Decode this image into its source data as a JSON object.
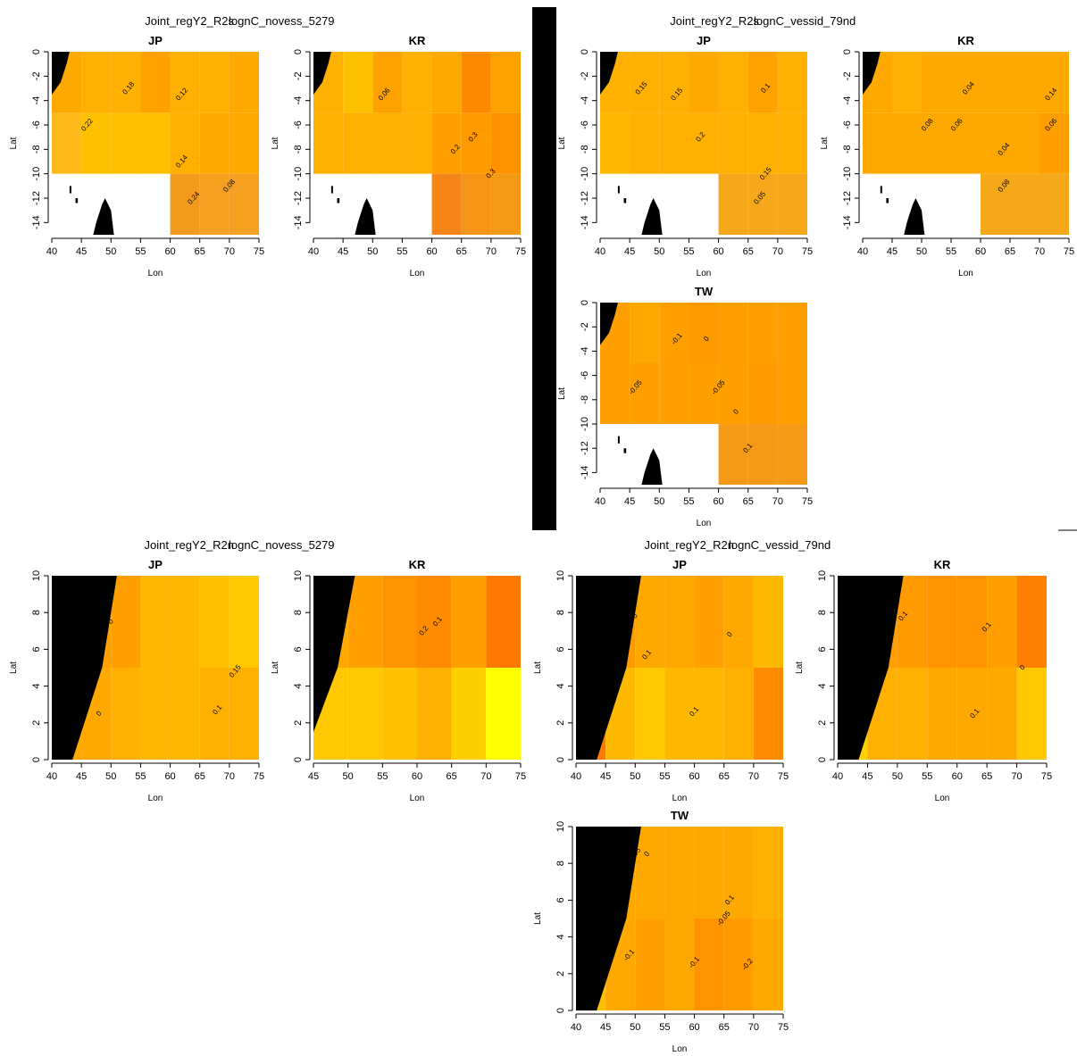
{
  "chart_data": [
    {
      "type": "heatmap",
      "suptitle": [
        "Joint_regY2_R2s",
        "lognC_novess_5279"
      ],
      "title": "JP",
      "xlabel": "Lon",
      "ylabel": "Lat",
      "xlim": [
        40,
        75
      ],
      "ylim": [
        -15,
        0
      ],
      "xticks": [
        40,
        45,
        50,
        55,
        60,
        65,
        70,
        75
      ],
      "yticks": [
        0,
        -2,
        -4,
        -6,
        -8,
        -10,
        -12,
        -14
      ],
      "x_bins": [
        40,
        45,
        50,
        55,
        60,
        65,
        70,
        75
      ],
      "y_bins": [
        -15,
        -10,
        -5,
        0
      ],
      "colors": [
        [
          null,
          null,
          null,
          null,
          "#F29A1C",
          "#F5A020",
          "#F5A020"
        ],
        [
          "#FFB91A",
          "#FFC000",
          "#FFC000",
          "#FFC000",
          "#FFB000",
          "#FFA800",
          "#FFA800"
        ],
        [
          "#FFA800",
          "#FFB000",
          "#FFB000",
          "#FFA200",
          "#FFB000",
          "#FFB000",
          "#FFA800"
        ]
      ],
      "annotations": [
        {
          "text": "0.18",
          "lon": 53,
          "lat": -3
        },
        {
          "text": "0.22",
          "lon": 46,
          "lat": -6
        },
        {
          "text": "0.12",
          "lon": 62,
          "lat": -3.5
        },
        {
          "text": "0.14",
          "lon": 62,
          "lat": -9
        },
        {
          "text": "0.08",
          "lon": 70,
          "lat": -11
        },
        {
          "text": "0.24",
          "lon": 64,
          "lat": -12
        }
      ]
    },
    {
      "type": "heatmap",
      "title": "KR",
      "xlabel": "Lon",
      "ylabel": "Lat",
      "xlim": [
        40,
        75
      ],
      "ylim": [
        -15,
        0
      ],
      "xticks": [
        40,
        45,
        50,
        55,
        60,
        65,
        70,
        75
      ],
      "yticks": [
        0,
        -2,
        -4,
        -6,
        -8,
        -10,
        -12,
        -14
      ],
      "x_bins": [
        40,
        45,
        50,
        55,
        60,
        65,
        70,
        75
      ],
      "y_bins": [
        -15,
        -10,
        -5,
        0
      ],
      "colors": [
        [
          null,
          null,
          null,
          null,
          "#F58516",
          "#F59416",
          "#F59A16"
        ],
        [
          "#FFB000",
          "#FFB000",
          "#FFB000",
          "#FFB000",
          "#FFA000",
          "#FF9A00",
          "#FF9200"
        ],
        [
          "#FFB000",
          "#FFC000",
          "#FFA200",
          "#FFB000",
          "#FFA800",
          "#FF8A00",
          "#FFA200"
        ]
      ],
      "annotations": [
        {
          "text": "0.06",
          "lon": 52,
          "lat": -3.5
        },
        {
          "text": "0.2",
          "lon": 64,
          "lat": -8
        },
        {
          "text": "0.3",
          "lon": 67,
          "lat": -7
        },
        {
          "text": "0.3",
          "lon": 70,
          "lat": -10
        }
      ]
    },
    {
      "type": "heatmap",
      "suptitle": [
        "Joint_regY2_R2s",
        "lognC_vessid_79nd"
      ],
      "title": "JP",
      "xlabel": "Lon",
      "ylabel": "Lat",
      "xlim": [
        40,
        75
      ],
      "ylim": [
        -15,
        0
      ],
      "xticks": [
        40,
        45,
        50,
        55,
        60,
        65,
        70,
        75
      ],
      "yticks": [
        0,
        -2,
        -4,
        -6,
        -8,
        -10,
        -12,
        -14
      ],
      "x_bins": [
        40,
        45,
        50,
        55,
        60,
        65,
        70,
        75
      ],
      "y_bins": [
        -15,
        -10,
        -5,
        0
      ],
      "colors": [
        [
          null,
          null,
          null,
          null,
          "#F5A81A",
          "#F5A81A",
          "#F5A81A"
        ],
        [
          "#FFB800",
          "#FFB000",
          "#FFB000",
          "#FFB000",
          "#FFB000",
          "#FFB000",
          "#FFB000"
        ],
        [
          "#FFB000",
          "#FFB000",
          "#FFB000",
          "#FFA800",
          "#FFB000",
          "#FFA200",
          "#FFB000"
        ]
      ],
      "annotations": [
        {
          "text": "0.15",
          "lon": 47,
          "lat": -3
        },
        {
          "text": "0.15",
          "lon": 53,
          "lat": -3.5
        },
        {
          "text": "0.1",
          "lon": 68,
          "lat": -3
        },
        {
          "text": "0.2",
          "lon": 57,
          "lat": -7
        },
        {
          "text": "0.15",
          "lon": 68,
          "lat": -10
        },
        {
          "text": "0.05",
          "lon": 67,
          "lat": -12
        }
      ]
    },
    {
      "type": "heatmap",
      "title": "KR",
      "xlabel": "Lon",
      "ylabel": "Lat",
      "xlim": [
        40,
        75
      ],
      "ylim": [
        -15,
        0
      ],
      "xticks": [
        40,
        45,
        50,
        55,
        60,
        65,
        70,
        75
      ],
      "yticks": [
        0,
        -2,
        -4,
        -6,
        -8,
        -10,
        -12,
        -14
      ],
      "x_bins": [
        40,
        45,
        50,
        55,
        60,
        65,
        70,
        75
      ],
      "y_bins": [
        -15,
        -10,
        -5,
        0
      ],
      "colors": [
        [
          null,
          null,
          null,
          null,
          "#F5A81A",
          "#F5A81A",
          "#F5A81A"
        ],
        [
          "#FFA800",
          "#FFA800",
          "#FFA800",
          "#FFA800",
          "#FFA800",
          "#FFA800",
          "#FFA000"
        ],
        [
          "#FFA800",
          "#FFB000",
          "#FFA800",
          "#FFA800",
          "#FFA800",
          "#FFA800",
          "#FFA800"
        ]
      ],
      "annotations": [
        {
          "text": "0.04",
          "lon": 58,
          "lat": -3
        },
        {
          "text": "0.14",
          "lon": 72,
          "lat": -3.5
        },
        {
          "text": "0.08",
          "lon": 51,
          "lat": -6
        },
        {
          "text": "0.06",
          "lon": 56,
          "lat": -6
        },
        {
          "text": "0.06",
          "lon": 72,
          "lat": -6
        },
        {
          "text": "0.04",
          "lon": 64,
          "lat": -8
        },
        {
          "text": "0.08",
          "lon": 64,
          "lat": -11
        }
      ]
    },
    {
      "type": "heatmap",
      "title": "TW",
      "xlabel": "Lon",
      "ylabel": "Lat",
      "xlim": [
        40,
        75
      ],
      "ylim": [
        -15,
        0
      ],
      "xticks": [
        40,
        45,
        50,
        55,
        60,
        65,
        70,
        75
      ],
      "yticks": [
        0,
        -2,
        -4,
        -6,
        -8,
        -10,
        -12,
        -14
      ],
      "x_bins": [
        40,
        45,
        50,
        55,
        60,
        65,
        70,
        75
      ],
      "y_bins": [
        -15,
        -10,
        -5,
        0
      ],
      "colors": [
        [
          null,
          null,
          null,
          null,
          "#F59A16",
          "#F59A16",
          "#F59A16"
        ],
        [
          "#FFA000",
          "#FFA000",
          "#FFA000",
          "#FFA000",
          "#FFA000",
          "#FF9A00",
          "#FFA000"
        ],
        [
          "#FFA000",
          "#FFA800",
          "#FFA000",
          "#FF9A00",
          "#FFA000",
          "#FFA000",
          "#FFA000"
        ]
      ],
      "annotations": [
        {
          "text": "-0.1",
          "lon": 53,
          "lat": -3
        },
        {
          "text": "0",
          "lon": 58,
          "lat": -3
        },
        {
          "text": "-0.05",
          "lon": 46,
          "lat": -7
        },
        {
          "text": "-0.05",
          "lon": 60,
          "lat": -7
        },
        {
          "text": "0",
          "lon": 63,
          "lat": -9
        },
        {
          "text": "0.1",
          "lon": 65,
          "lat": -12
        }
      ]
    },
    {
      "type": "heatmap",
      "suptitle": [
        "Joint_regY2_R2n",
        "lognC_novess_5279"
      ],
      "title": "JP",
      "xlabel": "Lon",
      "ylabel": "Lat",
      "xlim": [
        40,
        75
      ],
      "ylim": [
        0,
        10
      ],
      "xticks": [
        40,
        45,
        50,
        55,
        60,
        65,
        70,
        75
      ],
      "yticks": [
        0,
        2,
        4,
        6,
        8,
        10
      ],
      "x_bins": [
        40,
        45,
        50,
        55,
        60,
        65,
        70,
        75
      ],
      "y_bins": [
        0,
        5,
        10
      ],
      "colors": [
        [
          "#FFA800",
          "#FFA800",
          "#FFB000",
          "#FFB800",
          "#FFB800",
          "#FFB000",
          "#FFB000"
        ],
        [
          "#FFA000",
          "#FFA000",
          "#FFA000",
          "#FFB800",
          "#FFB800",
          "#FFC000",
          "#FFC800"
        ]
      ],
      "annotations": [
        {
          "text": "0",
          "lon": 50,
          "lat": 7.5
        },
        {
          "text": "0",
          "lon": 48,
          "lat": 2.5
        },
        {
          "text": "0.15",
          "lon": 71,
          "lat": 4.8
        },
        {
          "text": "0.1",
          "lon": 68,
          "lat": 2.7
        }
      ]
    },
    {
      "type": "heatmap",
      "title": "KR",
      "xlabel": "Lon",
      "ylabel": "Lat",
      "xlim": [
        45,
        75
      ],
      "ylim": [
        0,
        10
      ],
      "xticks": [
        45,
        50,
        55,
        60,
        65,
        70,
        75
      ],
      "yticks": [
        0,
        2,
        4,
        6,
        8,
        10
      ],
      "x_bins": [
        45,
        50,
        55,
        60,
        65,
        70,
        75
      ],
      "y_bins": [
        0,
        5,
        10
      ],
      "colors": [
        [
          "#FFC800",
          "#FFC800",
          "#FFC000",
          "#FFB000",
          "#FFD000",
          "#FFFF00"
        ],
        [
          "#FFA800",
          "#FFA000",
          "#FF9400",
          "#FF8C00",
          "#FFA000",
          "#FF7800"
        ]
      ],
      "annotations": [
        {
          "text": "0.2",
          "lon": 61,
          "lat": 7
        },
        {
          "text": "0.1",
          "lon": 63,
          "lat": 7.5
        }
      ]
    },
    {
      "type": "heatmap",
      "suptitle": [
        "Joint_regY2_R2n",
        "lognC_vessid_79nd"
      ],
      "title": "JP",
      "xlabel": "Lon",
      "ylabel": "Lat",
      "xlim": [
        40,
        75
      ],
      "ylim": [
        0,
        10
      ],
      "xticks": [
        40,
        45,
        50,
        55,
        60,
        65,
        70,
        75
      ],
      "yticks": [
        0,
        2,
        4,
        6,
        8,
        10
      ],
      "x_bins": [
        40,
        45,
        50,
        55,
        60,
        65,
        70,
        75
      ],
      "y_bins": [
        0,
        5,
        10
      ],
      "colors": [
        [
          "#FF7A00",
          "#FFB800",
          "#FFC800",
          "#FFB800",
          "#FFB800",
          "#FFB000",
          "#FF8C00"
        ],
        [
          "#FF9400",
          "#FF9A00",
          "#FFA800",
          "#FFA800",
          "#FFA000",
          "#FFA800",
          "#FFB800"
        ]
      ],
      "annotations": [
        {
          "text": "0",
          "lon": 50,
          "lat": 7.8
        },
        {
          "text": "0.1",
          "lon": 52,
          "lat": 5.7
        },
        {
          "text": "0",
          "lon": 66,
          "lat": 6.8
        },
        {
          "text": "0.1",
          "lon": 60,
          "lat": 2.6
        }
      ]
    },
    {
      "type": "heatmap",
      "title": "KR",
      "xlabel": "Lon",
      "ylabel": "Lat",
      "xlim": [
        40,
        75
      ],
      "ylim": [
        0,
        10
      ],
      "xticks": [
        40,
        45,
        50,
        55,
        60,
        65,
        70,
        75
      ],
      "yticks": [
        0,
        2,
        4,
        6,
        8,
        10
      ],
      "x_bins": [
        40,
        45,
        50,
        55,
        60,
        65,
        70,
        75
      ],
      "y_bins": [
        0,
        5,
        10
      ],
      "colors": [
        [
          "#FFD000",
          "#FFB000",
          "#FFB000",
          "#FFA800",
          "#FFA800",
          "#FFA800",
          "#FFC800"
        ],
        [
          "#FF9A00",
          "#FFA000",
          "#FF9A00",
          "#FF9400",
          "#FF9400",
          "#FFA000",
          "#FF8000"
        ]
      ],
      "annotations": [
        {
          "text": "0.1",
          "lon": 51,
          "lat": 7.8
        },
        {
          "text": "0.1",
          "lon": 65,
          "lat": 7.2
        },
        {
          "text": "0",
          "lon": 71,
          "lat": 5
        },
        {
          "text": "0.1",
          "lon": 63,
          "lat": 2.5
        }
      ]
    },
    {
      "type": "heatmap",
      "title": "TW",
      "xlabel": "Lon",
      "ylabel": "Lat",
      "xlim": [
        40,
        75
      ],
      "ylim": [
        0,
        10
      ],
      "xticks": [
        40,
        45,
        50,
        55,
        60,
        65,
        70,
        75
      ],
      "yticks": [
        0,
        2,
        4,
        6,
        8,
        10
      ],
      "x_bins": [
        40,
        45,
        50,
        55,
        60,
        65,
        70,
        75
      ],
      "y_bins": [
        0,
        5,
        10
      ],
      "colors": [
        [
          "#FFC000",
          "#FFA800",
          "#FFA000",
          "#FFA800",
          "#FF9400",
          "#FF9A00",
          "#FFA800"
        ],
        [
          "#FFA000",
          "#FFA800",
          "#FFA800",
          "#FFA800",
          "#FFA800",
          "#FFA800",
          "#FFB000"
        ]
      ],
      "annotations": [
        {
          "text": "0.05",
          "lon": 50,
          "lat": 8.5
        },
        {
          "text": "0",
          "lon": 52,
          "lat": 8.5
        },
        {
          "text": "0.1",
          "lon": 66,
          "lat": 6
        },
        {
          "text": "-0.05",
          "lon": 65,
          "lat": 5
        },
        {
          "text": "-0.1",
          "lon": 49,
          "lat": 3
        },
        {
          "text": "-0.1",
          "lon": 60,
          "lat": 2.6
        },
        {
          "text": "-0.2",
          "lon": 69,
          "lat": 2.5
        }
      ]
    }
  ]
}
